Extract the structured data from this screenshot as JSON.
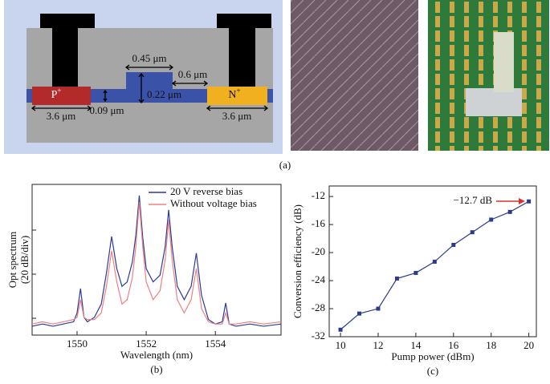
{
  "diagram": {
    "p_region": {
      "base": "P",
      "sup": "+"
    },
    "n_region": {
      "base": "N",
      "sup": "+"
    },
    "labels": [
      "0.45 μm",
      "0.6 μm",
      "0.22 μm",
      "0.09 μm",
      "3.6 μm",
      "3.6 μm"
    ],
    "panel_label": "(a)"
  },
  "chart_data": [
    {
      "type": "line",
      "panel_label": "(b)",
      "xlabel": "Wavelength (nm)",
      "ylabel": [
        "Opt spectrum",
        "(20 dB/div)"
      ],
      "xlim": [
        1548.7,
        1555.9
      ],
      "ylim": [
        0,
        68
      ],
      "xticks": [
        1550,
        1552,
        1554
      ],
      "legend": "upper right",
      "x": [
        1548.7,
        1549.0,
        1549.3,
        1549.6,
        1549.9,
        1550.0,
        1550.1,
        1550.2,
        1550.3,
        1550.5,
        1550.7,
        1550.85,
        1551.0,
        1551.15,
        1551.3,
        1551.45,
        1551.6,
        1551.7,
        1551.8,
        1551.9,
        1552.0,
        1552.2,
        1552.4,
        1552.55,
        1552.65,
        1552.75,
        1552.9,
        1553.1,
        1553.3,
        1553.45,
        1553.6,
        1553.8,
        1554.0,
        1554.2,
        1554.3,
        1554.4,
        1554.6,
        1555.0,
        1555.4,
        1555.9
      ],
      "series": [
        {
          "name": "20 V reverse bias",
          "color": "#2a3b9a",
          "values": [
            4,
            5,
            4,
            5,
            6,
            10,
            21,
            8,
            6,
            8,
            14,
            28,
            44.5,
            30,
            22,
            24,
            33,
            45,
            63,
            44,
            30,
            24,
            27,
            40,
            56.5,
            40,
            22,
            16,
            22,
            37,
            18,
            7,
            5,
            6,
            14.5,
            5,
            4,
            5,
            4,
            5
          ]
        },
        {
          "name": "Without voltage bias",
          "color": "#f08080",
          "values": [
            5,
            6,
            5,
            6,
            7,
            8,
            16,
            8,
            7,
            7,
            10,
            22,
            38,
            24,
            14,
            16,
            26,
            40,
            60,
            40,
            24,
            16,
            20,
            34,
            52,
            34,
            16,
            10,
            16,
            30,
            12,
            6,
            5,
            5,
            10,
            5,
            5,
            6,
            5,
            6
          ]
        }
      ]
    },
    {
      "type": "line",
      "panel_label": "(c)",
      "xlabel": "Pump power (dBm)",
      "ylabel": [
        "Conversion efficiency (dB)"
      ],
      "xlim": [
        9.4,
        20.4
      ],
      "ylim": [
        -32,
        -10.5
      ],
      "xticks": [
        10,
        12,
        14,
        16,
        18,
        20
      ],
      "yticks": [
        -32,
        -28,
        -24,
        -20,
        -16,
        -12
      ],
      "annotation": "−12.7 dB",
      "x": [
        10,
        11,
        12,
        13,
        14,
        15,
        16,
        17,
        18,
        19,
        20
      ],
      "series": [
        {
          "name": null,
          "color": "#2a3b8c",
          "values": [
            -31.0,
            -28.7,
            -28.0,
            -23.7,
            -22.9,
            -21.3,
            -18.9,
            -17.1,
            -15.3,
            -14.2,
            -12.7
          ]
        }
      ]
    }
  ]
}
